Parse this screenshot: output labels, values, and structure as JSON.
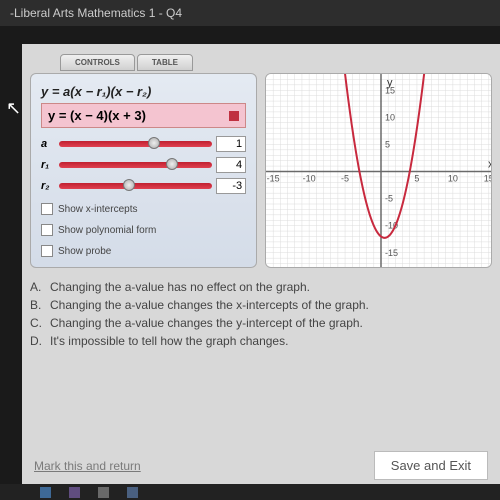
{
  "header": {
    "title": "-Liberal Arts Mathematics 1 - Q4"
  },
  "tabs": {
    "controls": "CONTROLS",
    "table": "TABLE"
  },
  "equation": {
    "general": "y = a(x − r₁)(x − r₂)",
    "current": "y = (x − 4)(x + 3)",
    "series_color": "#c03040"
  },
  "sliders": {
    "a": {
      "label": "a",
      "value": "1",
      "thumb_pct": 58,
      "track_color": "#c02030"
    },
    "r1": {
      "label": "r₁",
      "value": "4",
      "thumb_pct": 70,
      "track_color": "#c02030"
    },
    "r2": {
      "label": "r₂",
      "value": "-3",
      "thumb_pct": 42,
      "track_color": "#c02030"
    }
  },
  "checks": {
    "xints": "Show x-intercepts",
    "poly": "Show polynomial form",
    "probe": "Show probe"
  },
  "graph": {
    "type": "line",
    "xlabel": "x",
    "ylabel": "y",
    "xlim": [
      -16,
      16
    ],
    "ylim": [
      -18,
      18
    ],
    "xticks": [
      -15,
      -10,
      -5,
      5,
      10,
      15
    ],
    "yticks": [
      -15,
      -10,
      -5,
      5,
      10,
      15
    ],
    "background_color": "#ffffff",
    "grid_color": "#dcdcdc",
    "axis_color": "#6a6a6a",
    "axis_width": 1.5,
    "curve_color": "#c8293e",
    "curve_width": 2,
    "a": 1,
    "r1": 4,
    "r2": -3,
    "label_fontsize": 9,
    "axis_label_fontsize": 11
  },
  "answers": {
    "A": "Changing the a-value has no effect on the graph.",
    "B": "Changing the a-value changes the x-intercepts of the graph.",
    "C": "Changing the a-value changes the y-intercept of the graph.",
    "D": "It's impossible to tell how the graph changes."
  },
  "bottom": {
    "mark": "Mark this and return",
    "save": "Save and Exit"
  }
}
